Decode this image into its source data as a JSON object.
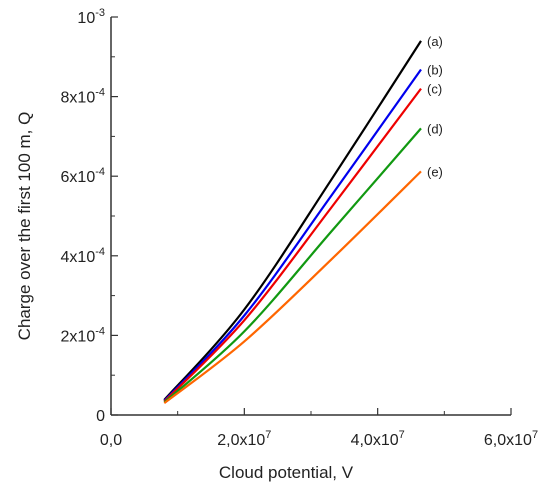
{
  "chart_data": {
    "type": "line",
    "title": "",
    "xlabel": "Cloud potential, V",
    "ylabel": "Charge over the first 100 m, Q",
    "xlim": [
      0,
      60000000
    ],
    "ylim": [
      0,
      0.001
    ],
    "grid": false,
    "x_ticks": [
      {
        "value": 0,
        "mantissa": "0,0",
        "exponent": ""
      },
      {
        "value": 20000000,
        "mantissa": "2,0x10",
        "exponent": "7"
      },
      {
        "value": 40000000,
        "mantissa": "4,0x10",
        "exponent": "7"
      },
      {
        "value": 60000000,
        "mantissa": "6,0x10",
        "exponent": "7"
      }
    ],
    "y_ticks": [
      {
        "value": 0,
        "mantissa": "0",
        "exponent": ""
      },
      {
        "value": 0.0002,
        "mantissa": "2x10",
        "exponent": "-4"
      },
      {
        "value": 0.0004,
        "mantissa": "4x10",
        "exponent": "-4"
      },
      {
        "value": 0.0006,
        "mantissa": "6x10",
        "exponent": "-4"
      },
      {
        "value": 0.0008,
        "mantissa": "8x10",
        "exponent": "-4"
      },
      {
        "value": 0.001,
        "mantissa": "10",
        "exponent": "-3"
      }
    ],
    "series": [
      {
        "name": "(a)",
        "color": "#000000",
        "x": [
          8000000,
          20000000,
          33000000,
          46500000
        ],
        "y": [
          3.8e-05,
          0.000265,
          0.00059,
          0.00094
        ]
      },
      {
        "name": "(b)",
        "color": "#0000ee",
        "x": [
          8000000,
          20000000,
          33000000,
          46500000
        ],
        "y": [
          3.6e-05,
          0.00025,
          0.00055,
          0.000868
        ]
      },
      {
        "name": "(c)",
        "color": "#ee0000",
        "x": [
          8000000,
          20000000,
          33000000,
          46500000
        ],
        "y": [
          3.4e-05,
          0.000238,
          0.00052,
          0.00082
        ]
      },
      {
        "name": "(d)",
        "color": "#119911",
        "x": [
          8000000,
          20000000,
          33000000,
          46500000
        ],
        "y": [
          3.2e-05,
          0.00021,
          0.00046,
          0.00072
        ]
      },
      {
        "name": "(e)",
        "color": "#ff6600",
        "x": [
          8000000,
          20000000,
          33000000,
          46500000
        ],
        "y": [
          3e-05,
          0.000185,
          0.00039,
          0.000612
        ]
      }
    ]
  }
}
